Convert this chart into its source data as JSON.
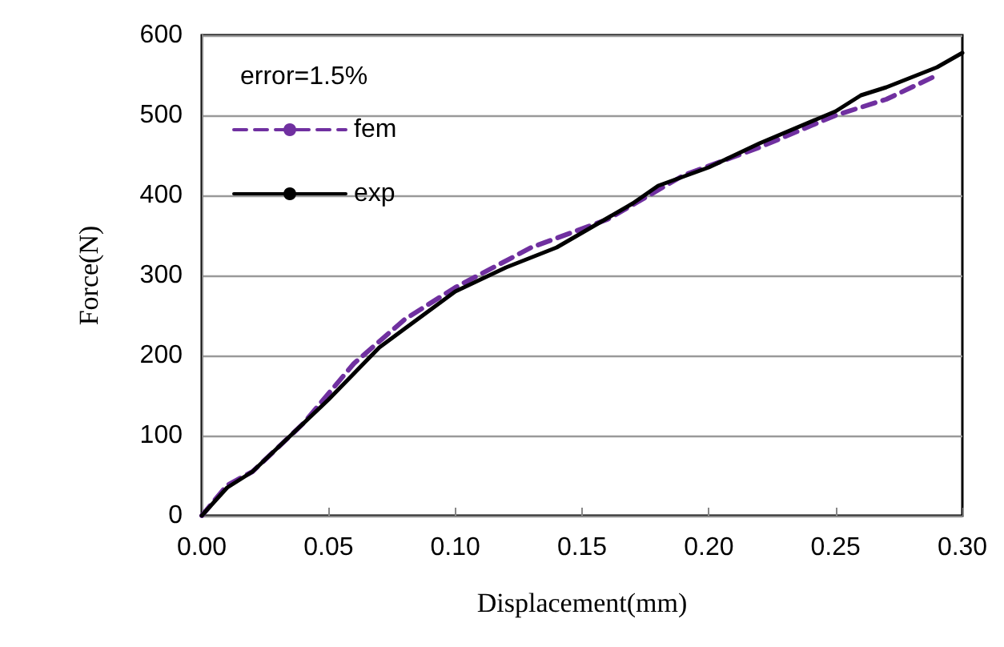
{
  "chart_data": {
    "type": "line",
    "xlabel": "Displacement(mm)",
    "ylabel": "Force(N)",
    "annotations": [
      "error=1.5%"
    ],
    "xlim": [
      0,
      0.3
    ],
    "xticks": [
      {
        "value": 0,
        "label": "0.00"
      },
      {
        "value": 0.05,
        "label": "0.05"
      },
      {
        "value": 0.1,
        "label": "0.10"
      },
      {
        "value": 0.15,
        "label": "0.15"
      },
      {
        "value": 0.2,
        "label": "0.20"
      },
      {
        "value": 0.25,
        "label": "0.25"
      },
      {
        "value": 0.3,
        "label": "0.30"
      }
    ],
    "ylim": [
      0,
      600
    ],
    "yticks": [
      0,
      100,
      200,
      300,
      400,
      500,
      600
    ],
    "grid": "y",
    "legend": "top left",
    "marker": "none",
    "series": [
      {
        "name": "fem",
        "color": "#7030a0",
        "line_style": "dashed",
        "x": [
          0,
          0.01,
          0.02,
          0.04,
          0.06,
          0.08,
          0.1,
          0.13,
          0.16,
          0.19,
          0.22,
          0.25,
          0.27,
          0.29
        ],
        "values": [
          0,
          38,
          55,
          115,
          190,
          245,
          285,
          335,
          370,
          425,
          460,
          500,
          520,
          550
        ]
      },
      {
        "name": "exp",
        "color": "#000000",
        "line_style": "solid",
        "x": [
          0,
          0.01,
          0.02,
          0.03,
          0.05,
          0.07,
          0.1,
          0.12,
          0.14,
          0.17,
          0.18,
          0.2,
          0.22,
          0.25,
          0.26,
          0.27,
          0.29,
          0.3
        ],
        "values": [
          0,
          35,
          55,
          85,
          145,
          210,
          280,
          310,
          335,
          390,
          412,
          435,
          465,
          505,
          525,
          535,
          560,
          578
        ]
      }
    ]
  }
}
